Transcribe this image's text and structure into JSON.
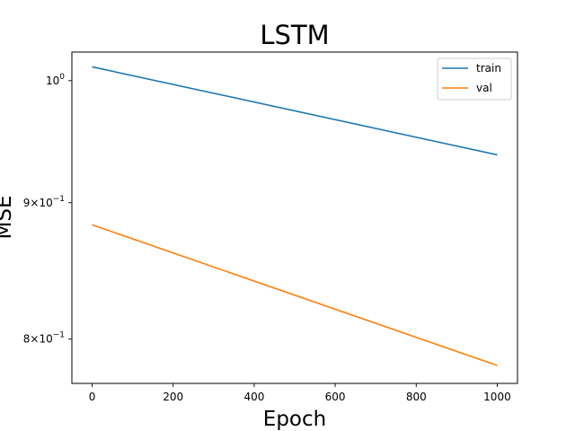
{
  "chart_data": {
    "type": "line",
    "title": "LSTM",
    "xlabel": "Epoch",
    "ylabel": "MSE",
    "yscale": "log",
    "xlim": [
      -50,
      1050
    ],
    "ylim": [
      0.77,
      1.025
    ],
    "x_ticks": [
      0,
      200,
      400,
      600,
      800,
      1000
    ],
    "x_tick_labels": [
      "0",
      "200",
      "400",
      "600",
      "800",
      "1000"
    ],
    "y_ticks": [
      0.8,
      0.9,
      1.0
    ],
    "y_tick_labels": [
      {
        "mantissa": "8",
        "base": "10",
        "exp": "−1"
      },
      {
        "mantissa": "9",
        "base": "10",
        "exp": "−1"
      },
      {
        "mantissa": "",
        "base": "10",
        "exp": "0"
      }
    ],
    "grid": false,
    "legend_position": "upper right",
    "series": [
      {
        "name": "train",
        "color": "#1f77b4",
        "x": [
          0,
          1000
        ],
        "values": [
          1.012,
          0.938
        ]
      },
      {
        "name": "val",
        "color": "#ff7f0e",
        "x": [
          0,
          1000
        ],
        "values": [
          0.883,
          0.782
        ]
      }
    ]
  }
}
